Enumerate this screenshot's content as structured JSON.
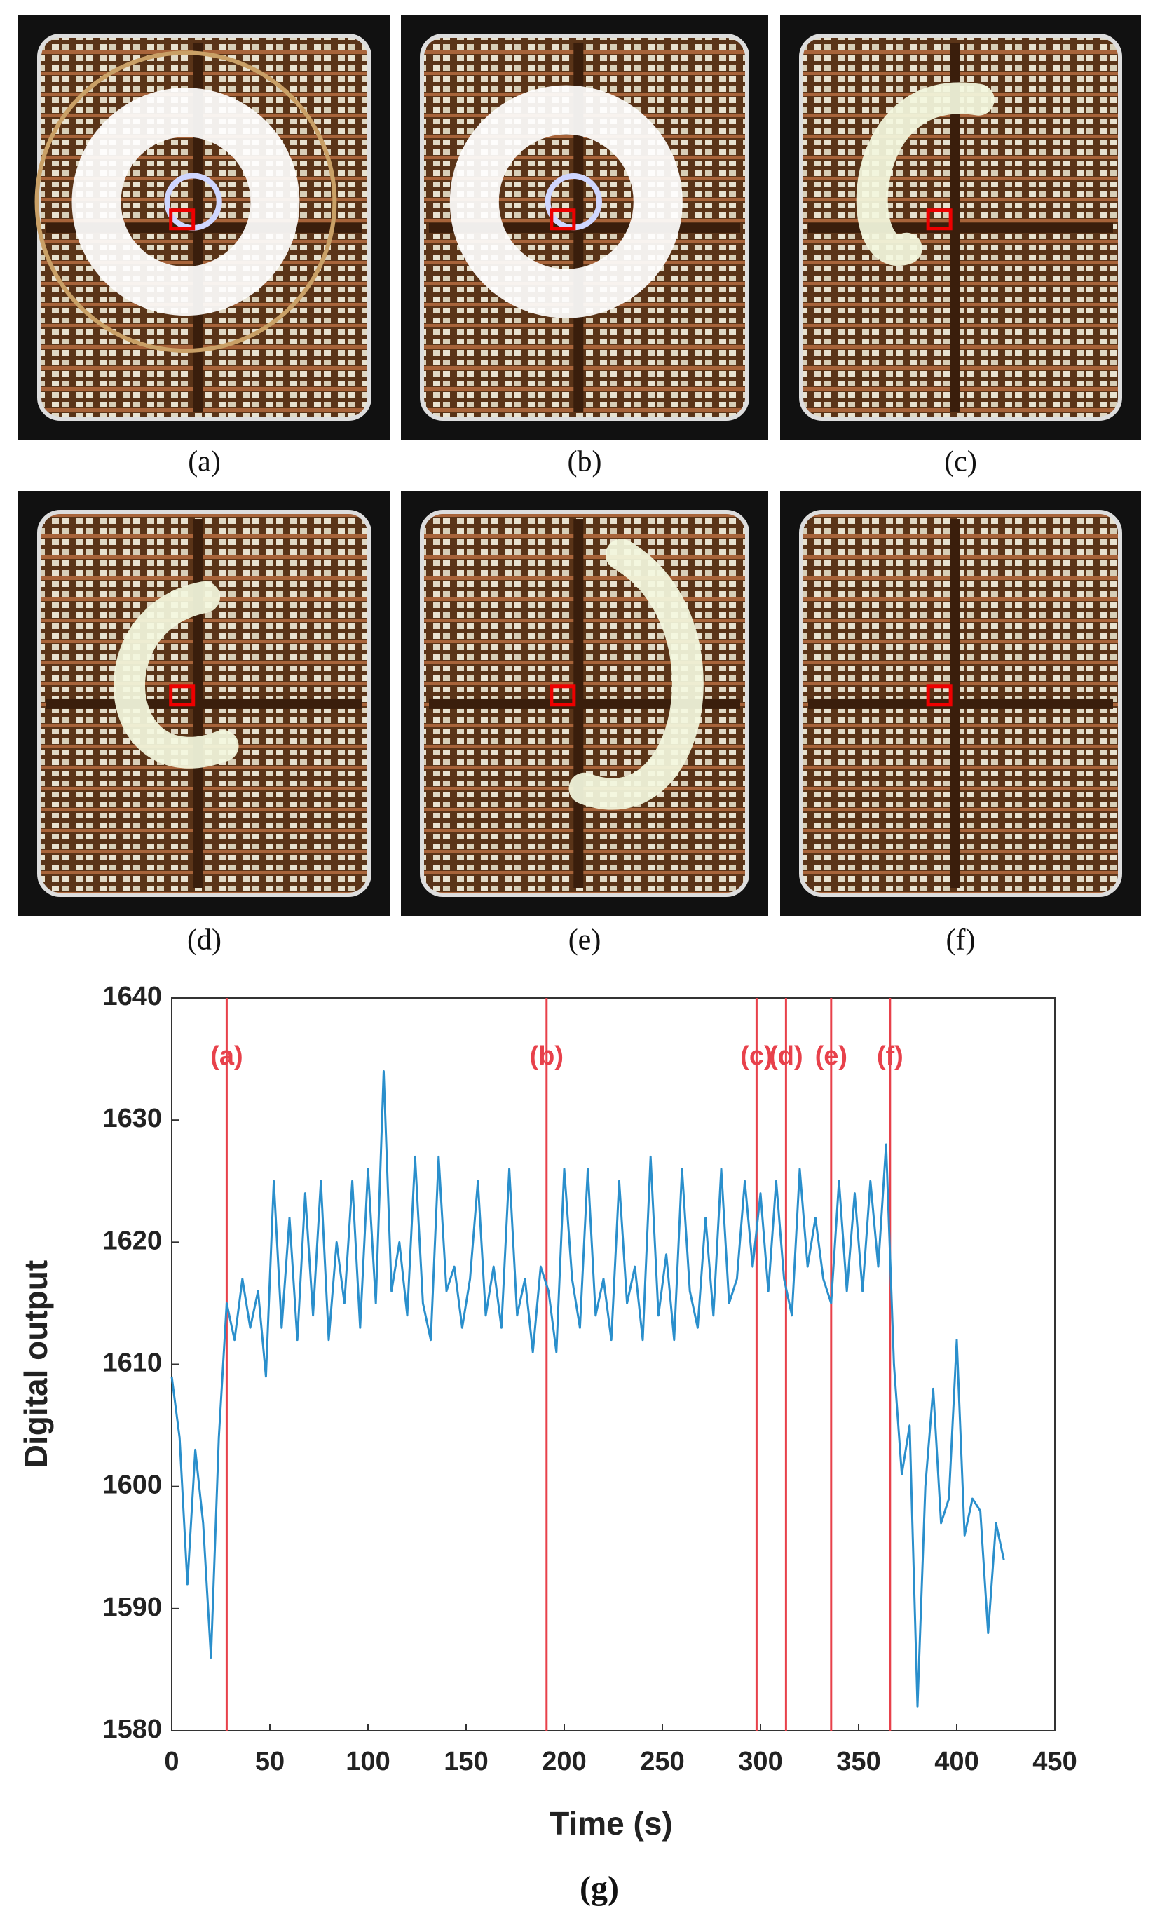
{
  "panels": [
    {
      "label": "(a)"
    },
    {
      "label": "(b)"
    },
    {
      "label": "(c)"
    },
    {
      "label": "(d)"
    },
    {
      "label": "(e)"
    },
    {
      "label": "(f)"
    }
  ],
  "chart_data": {
    "type": "line",
    "panel_label": "(g)",
    "x_label": "Time (s)",
    "y_label": "Digital output",
    "xlim": [
      0,
      450
    ],
    "xticks": [
      0,
      50,
      100,
      150,
      200,
      250,
      300,
      350,
      400,
      450
    ],
    "ylim": [
      1580,
      1640
    ],
    "yticks": [
      1580,
      1590,
      1600,
      1610,
      1620,
      1630,
      1640
    ],
    "markers_color": "#e8414b",
    "markers": [
      {
        "x": 28,
        "label": "(a)"
      },
      {
        "x": 191,
        "label": "(b)"
      },
      {
        "x": 298,
        "label": "(c)"
      },
      {
        "x": 313,
        "label": "(d)"
      },
      {
        "x": 336,
        "label": "(e)"
      },
      {
        "x": 366,
        "label": "(f)"
      }
    ],
    "x": [
      0,
      4,
      8,
      12,
      16,
      20,
      24,
      28,
      32,
      36,
      40,
      44,
      48,
      52,
      56,
      60,
      64,
      68,
      72,
      76,
      80,
      84,
      88,
      92,
      96,
      100,
      104,
      108,
      112,
      116,
      120,
      124,
      128,
      132,
      136,
      140,
      144,
      148,
      152,
      156,
      160,
      164,
      168,
      172,
      176,
      180,
      184,
      188,
      192,
      196,
      200,
      204,
      208,
      212,
      216,
      220,
      224,
      228,
      232,
      236,
      240,
      244,
      248,
      252,
      256,
      260,
      264,
      268,
      272,
      276,
      280,
      284,
      288,
      292,
      296,
      300,
      304,
      308,
      312,
      316,
      320,
      324,
      328,
      332,
      336,
      340,
      344,
      348,
      352,
      356,
      360,
      364,
      368,
      372,
      376,
      380,
      384,
      388,
      392,
      396,
      400,
      404,
      408,
      412,
      416,
      420,
      424
    ],
    "series": [
      {
        "color": "#2a8fcc",
        "values": [
          1609,
          1604,
          1592,
          1603,
          1597,
          1586,
          1604,
          1615,
          1612,
          1617,
          1613,
          1616,
          1609,
          1625,
          1613,
          1622,
          1612,
          1624,
          1614,
          1625,
          1612,
          1620,
          1615,
          1625,
          1613,
          1626,
          1615,
          1634,
          1616,
          1620,
          1614,
          1627,
          1615,
          1612,
          1627,
          1616,
          1618,
          1613,
          1617,
          1625,
          1614,
          1618,
          1613,
          1626,
          1614,
          1617,
          1611,
          1618,
          1616,
          1611,
          1626,
          1617,
          1613,
          1626,
          1614,
          1617,
          1612,
          1625,
          1615,
          1618,
          1612,
          1627,
          1614,
          1619,
          1612,
          1626,
          1616,
          1613,
          1622,
          1614,
          1626,
          1615,
          1617,
          1625,
          1618,
          1624,
          1616,
          1625,
          1617,
          1614,
          1626,
          1618,
          1622,
          1617,
          1615,
          1625,
          1616,
          1624,
          1616,
          1625,
          1618,
          1628,
          1610,
          1601,
          1605,
          1582,
          1600,
          1608,
          1597,
          1599,
          1612,
          1596,
          1599,
          1598,
          1588,
          1597,
          1594
        ]
      }
    ]
  }
}
